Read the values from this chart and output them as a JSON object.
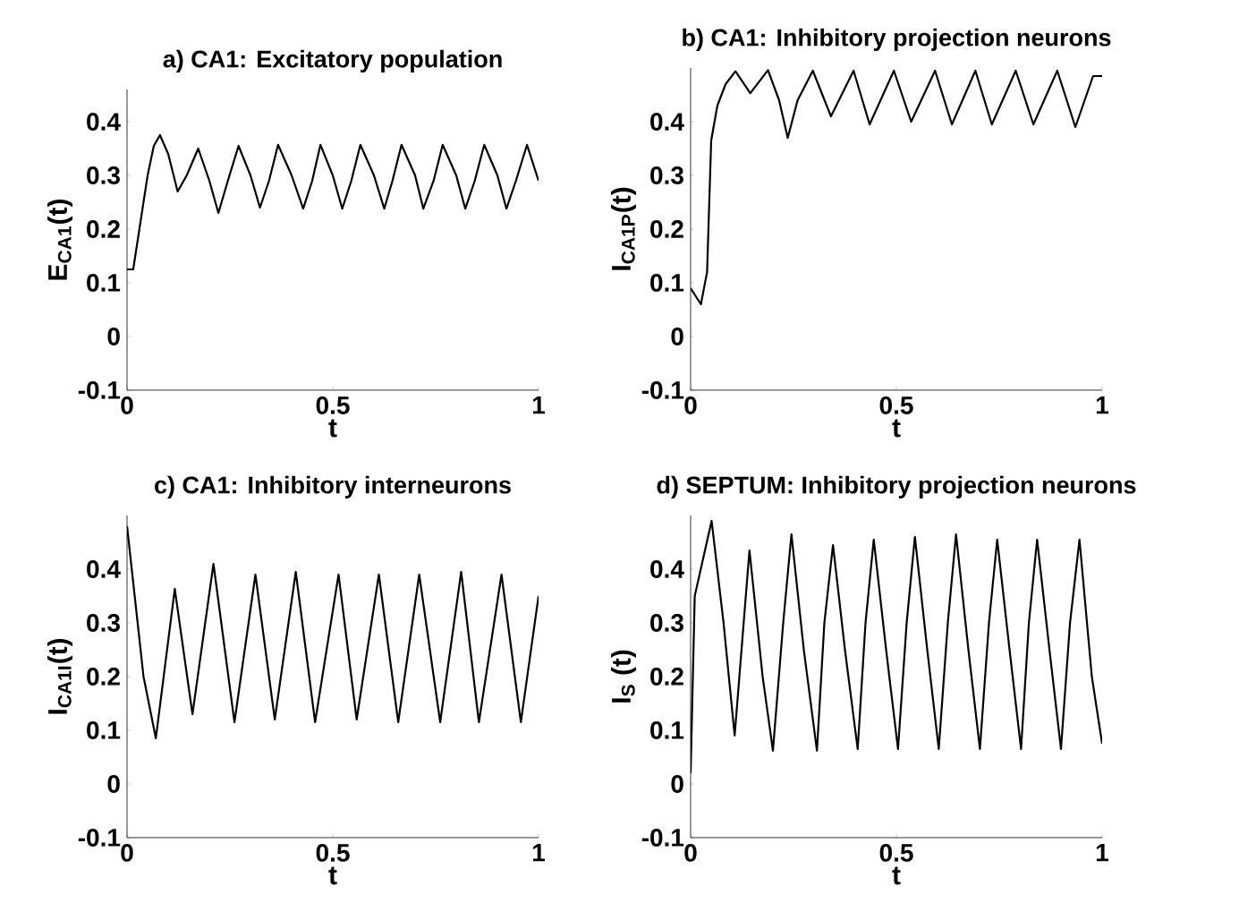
{
  "chart_data": [
    {
      "type": "line",
      "title": "a) CA1: Excitatory population",
      "xlabel": "t",
      "ylabel": "E$_{CA1}$(t)",
      "color": "#000000",
      "xlim": [
        0,
        1
      ],
      "ylim": [
        -0.1,
        0.46
      ],
      "xticks": [
        0,
        0.5,
        1
      ],
      "yticks": [
        -0.1,
        0,
        0.1,
        0.2,
        0.3,
        0.4
      ],
      "x": [
        0,
        0.015,
        0.03,
        0.05,
        0.065,
        0.08,
        0.1,
        0.123,
        0.145,
        0.173,
        0.2,
        0.222,
        0.245,
        0.271,
        0.3,
        0.323,
        0.345,
        0.367,
        0.4,
        0.428,
        0.45,
        0.47,
        0.5,
        0.523,
        0.545,
        0.567,
        0.6,
        0.625,
        0.645,
        0.667,
        0.7,
        0.72,
        0.745,
        0.767,
        0.8,
        0.822,
        0.845,
        0.868,
        0.9,
        0.922,
        0.945,
        0.972,
        1
      ],
      "values": [
        0.125,
        0.125,
        0.2,
        0.3,
        0.355,
        0.375,
        0.34,
        0.27,
        0.3,
        0.35,
        0.29,
        0.23,
        0.29,
        0.355,
        0.3,
        0.24,
        0.29,
        0.357,
        0.3,
        0.238,
        0.29,
        0.357,
        0.3,
        0.238,
        0.29,
        0.357,
        0.3,
        0.238,
        0.29,
        0.357,
        0.3,
        0.238,
        0.29,
        0.357,
        0.3,
        0.238,
        0.29,
        0.357,
        0.3,
        0.238,
        0.29,
        0.357,
        0.29
      ]
    },
    {
      "type": "line",
      "title": "b) CA1: Inhibitory projection neurons",
      "xlabel": "t",
      "ylabel": "I$_{CA1P}$(t)",
      "color": "#000000",
      "xlim": [
        0,
        1
      ],
      "ylim": [
        -0.1,
        0.5
      ],
      "xticks": [
        0,
        0.5,
        1
      ],
      "yticks": [
        -0.1,
        0,
        0.1,
        0.2,
        0.3,
        0.4
      ],
      "x": [
        0,
        0.025,
        0.04,
        0.05,
        0.065,
        0.085,
        0.109,
        0.145,
        0.188,
        0.215,
        0.236,
        0.26,
        0.297,
        0.341,
        0.396,
        0.435,
        0.494,
        0.536,
        0.594,
        0.635,
        0.692,
        0.732,
        0.79,
        0.833,
        0.891,
        0.935,
        0.978,
        1
      ],
      "values": [
        0.09,
        0.06,
        0.12,
        0.365,
        0.43,
        0.47,
        0.494,
        0.453,
        0.496,
        0.44,
        0.37,
        0.44,
        0.495,
        0.41,
        0.495,
        0.395,
        0.495,
        0.4,
        0.495,
        0.395,
        0.495,
        0.395,
        0.495,
        0.395,
        0.495,
        0.39,
        0.485,
        0.485
      ]
    },
    {
      "type": "line",
      "title": "c) CA1: Inhibitory interneurons",
      "xlabel": "t",
      "ylabel": "I$_{CA1I}$(t)",
      "color": "#000000",
      "xlim": [
        0,
        1
      ],
      "ylim": [
        -0.1,
        0.5
      ],
      "xticks": [
        0,
        0.5,
        1
      ],
      "yticks": [
        -0.1,
        0,
        0.1,
        0.2,
        0.3,
        0.4
      ],
      "x": [
        0,
        0.04,
        0.07,
        0.116,
        0.159,
        0.21,
        0.261,
        0.312,
        0.359,
        0.41,
        0.457,
        0.514,
        0.558,
        0.612,
        0.659,
        0.71,
        0.761,
        0.812,
        0.855,
        0.91,
        0.957,
        1
      ],
      "values": [
        0.48,
        0.2,
        0.085,
        0.363,
        0.13,
        0.41,
        0.115,
        0.39,
        0.12,
        0.395,
        0.115,
        0.39,
        0.12,
        0.39,
        0.115,
        0.39,
        0.115,
        0.395,
        0.115,
        0.39,
        0.115,
        0.35
      ]
    },
    {
      "type": "line",
      "title": "d) SEPTUM: Inhibitory projection neurons",
      "xlabel": "t",
      "ylabel": "I$_{S}$ (t)",
      "color": "#000000",
      "xlim": [
        0,
        1
      ],
      "ylim": [
        -0.1,
        0.5
      ],
      "xticks": [
        0,
        0.5,
        1
      ],
      "yticks": [
        -0.1,
        0,
        0.1,
        0.2,
        0.3,
        0.4
      ],
      "x": [
        0,
        0.01,
        0.051,
        0.08,
        0.107,
        0.143,
        0.175,
        0.2,
        0.225,
        0.245,
        0.275,
        0.307,
        0.325,
        0.346,
        0.375,
        0.406,
        0.425,
        0.445,
        0.475,
        0.504,
        0.525,
        0.545,
        0.575,
        0.603,
        0.625,
        0.645,
        0.675,
        0.703,
        0.725,
        0.745,
        0.775,
        0.803,
        0.822,
        0.842,
        0.872,
        0.9,
        0.922,
        0.945,
        0.975,
        1
      ],
      "values": [
        0.02,
        0.35,
        0.49,
        0.3,
        0.09,
        0.435,
        0.2,
        0.062,
        0.3,
        0.465,
        0.25,
        0.062,
        0.3,
        0.445,
        0.25,
        0.065,
        0.3,
        0.455,
        0.25,
        0.065,
        0.3,
        0.46,
        0.25,
        0.065,
        0.3,
        0.465,
        0.25,
        0.065,
        0.3,
        0.455,
        0.25,
        0.065,
        0.3,
        0.455,
        0.25,
        0.065,
        0.3,
        0.455,
        0.2,
        0.075
      ]
    }
  ]
}
